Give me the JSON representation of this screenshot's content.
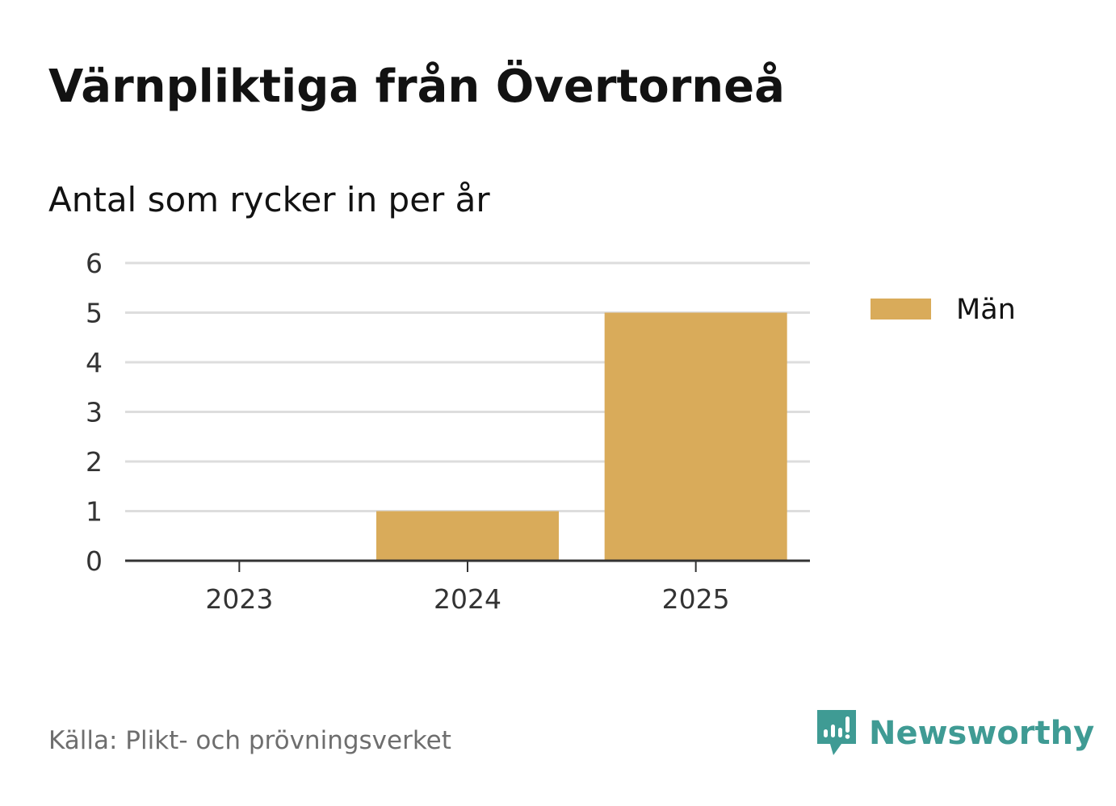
{
  "header": {
    "title": "Värnpliktiga från Övertorneå",
    "subtitle": "Antal som rycker in per år"
  },
  "chart_data": {
    "type": "bar",
    "categories": [
      "2023",
      "2024",
      "2025"
    ],
    "series": [
      {
        "name": "Män",
        "values": [
          0,
          1,
          5
        ],
        "color": "#d9ab5a"
      }
    ],
    "ylim": [
      0,
      6
    ],
    "yticks": [
      0,
      1,
      2,
      3,
      4,
      5,
      6
    ],
    "xlabel": "",
    "ylabel": "",
    "grid": true,
    "legend_position": "right"
  },
  "footer": {
    "source": "Källa: Plikt- och prövningsverket",
    "brand": "Newsworthy",
    "brand_color": "#3f9b94"
  },
  "colors": {
    "gridline": "#dddddd",
    "axis": "#333333"
  }
}
